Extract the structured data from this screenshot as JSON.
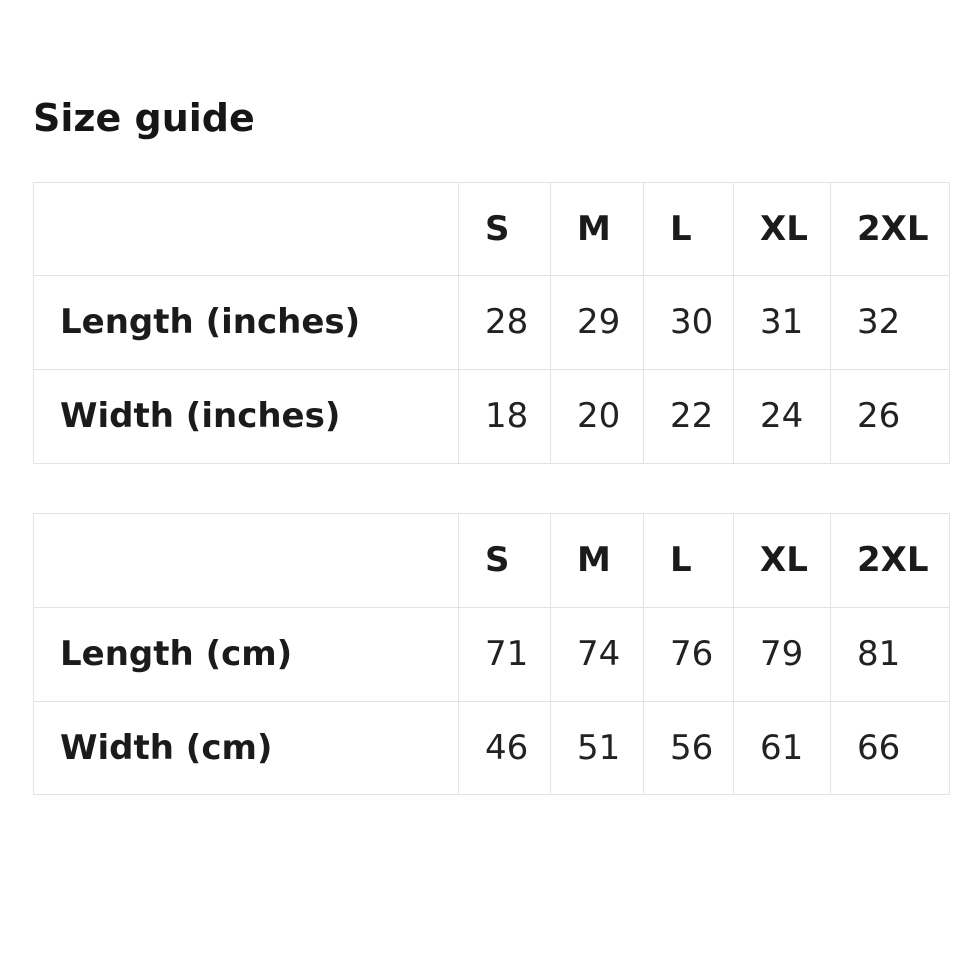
{
  "page": {
    "title": "Size guide"
  },
  "colors": {
    "background": "#ffffff",
    "text": "#1b1b1b",
    "border": "#e3e3e3"
  },
  "tables": [
    {
      "name": "inches",
      "columns": [
        "S",
        "M",
        "L",
        "XL",
        "2XL"
      ],
      "rows": [
        {
          "label": "Length (inches)",
          "values": [
            "28",
            "29",
            "30",
            "31",
            "32"
          ]
        },
        {
          "label": "Width (inches)",
          "values": [
            "18",
            "20",
            "22",
            "24",
            "26"
          ]
        }
      ]
    },
    {
      "name": "cm",
      "columns": [
        "S",
        "M",
        "L",
        "XL",
        "2XL"
      ],
      "rows": [
        {
          "label": "Length (cm)",
          "values": [
            "71",
            "74",
            "76",
            "79",
            "81"
          ]
        },
        {
          "label": "Width (cm)",
          "values": [
            "46",
            "51",
            "56",
            "61",
            "66"
          ]
        }
      ]
    }
  ]
}
